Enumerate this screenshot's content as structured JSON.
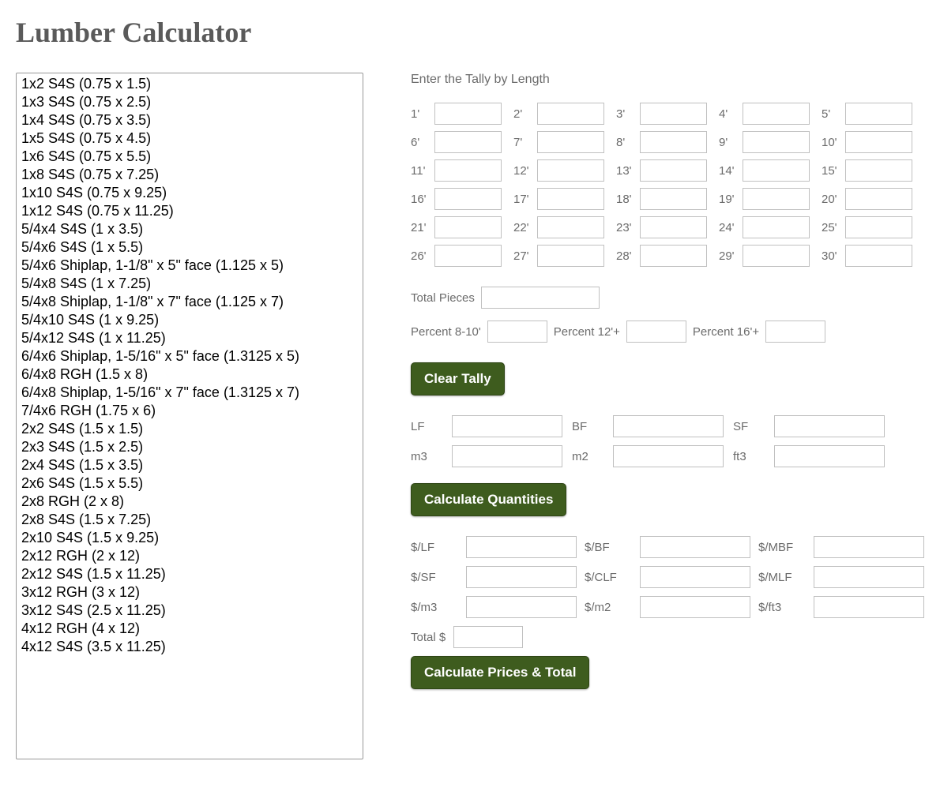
{
  "title": "Lumber Calculator",
  "lumber_options": [
    "1x2 S4S (0.75 x 1.5)",
    "1x3 S4S (0.75 x 2.5)",
    "1x4 S4S (0.75 x 3.5)",
    "1x5 S4S (0.75 x 4.5)",
    "1x6 S4S (0.75 x 5.5)",
    "1x8 S4S (0.75 x 7.25)",
    "1x10 S4S (0.75 x 9.25)",
    "1x12 S4S (0.75 x 11.25)",
    "5/4x4 S4S (1 x 3.5)",
    "5/4x6 S4S (1 x 5.5)",
    "5/4x6 Shiplap, 1-1/8\" x 5\" face (1.125 x 5)",
    "5/4x8 S4S (1 x 7.25)",
    "5/4x8 Shiplap, 1-1/8\" x 7\" face (1.125 x 7)",
    "5/4x10 S4S (1 x 9.25)",
    "5/4x12 S4S (1 x 11.25)",
    "6/4x6 Shiplap, 1-5/16\" x 5\" face (1.3125 x 5)",
    "6/4x8 RGH (1.5 x 8)",
    "6/4x8 Shiplap, 1-5/16\" x 7\" face (1.3125 x 7)",
    "7/4x6 RGH (1.75 x 6)",
    "2x2 S4S (1.5 x 1.5)",
    "2x3 S4S (1.5 x 2.5)",
    "2x4 S4S (1.5 x 3.5)",
    "2x6 S4S (1.5 x 5.5)",
    "2x8 RGH (2 x 8)",
    "2x8 S4S (1.5 x 7.25)",
    "2x10 S4S (1.5 x 9.25)",
    "2x12 RGH (2 x 12)",
    "2x12 S4S (1.5 x 11.25)",
    "3x12 RGH (3 x 12)",
    "3x12 S4S (2.5 x 11.25)",
    "4x12 RGH (4 x 12)",
    "4x12 S4S (3.5 x 11.25)"
  ],
  "tally_heading": "Enter the Tally by Length",
  "tally_lengths": [
    "1'",
    "2'",
    "3'",
    "4'",
    "5'",
    "6'",
    "7'",
    "8'",
    "9'",
    "10'",
    "11'",
    "12'",
    "13'",
    "14'",
    "15'",
    "16'",
    "17'",
    "18'",
    "19'",
    "20'",
    "21'",
    "22'",
    "23'",
    "24'",
    "25'",
    "26'",
    "27'",
    "28'",
    "29'",
    "30'"
  ],
  "labels": {
    "total_pieces": "Total Pieces",
    "percent_8_10": "Percent 8-10'",
    "percent_12": "Percent 12'+",
    "percent_16": "Percent 16'+",
    "lf": "LF",
    "bf": "BF",
    "sf": "SF",
    "m3": "m3",
    "m2": "m2",
    "ft3": "ft3",
    "price_lf": "$/LF",
    "price_bf": "$/BF",
    "price_mbf": "$/MBF",
    "price_sf": "$/SF",
    "price_clf": "$/CLF",
    "price_mlf": "$/MLF",
    "price_m3": "$/m3",
    "price_m2": "$/m2",
    "price_ft3": "$/ft3",
    "total": "Total $"
  },
  "buttons": {
    "clear_tally": "Clear Tally",
    "calc_quantities": "Calculate Quantities",
    "calc_prices": "Calculate Prices & Total"
  },
  "colors": {
    "button_bg": "#3e5c1e",
    "button_text": "#ffffff",
    "title_color": "#5a5a5a",
    "label_color": "#6b6b6b",
    "input_border": "#c0c0c0"
  }
}
